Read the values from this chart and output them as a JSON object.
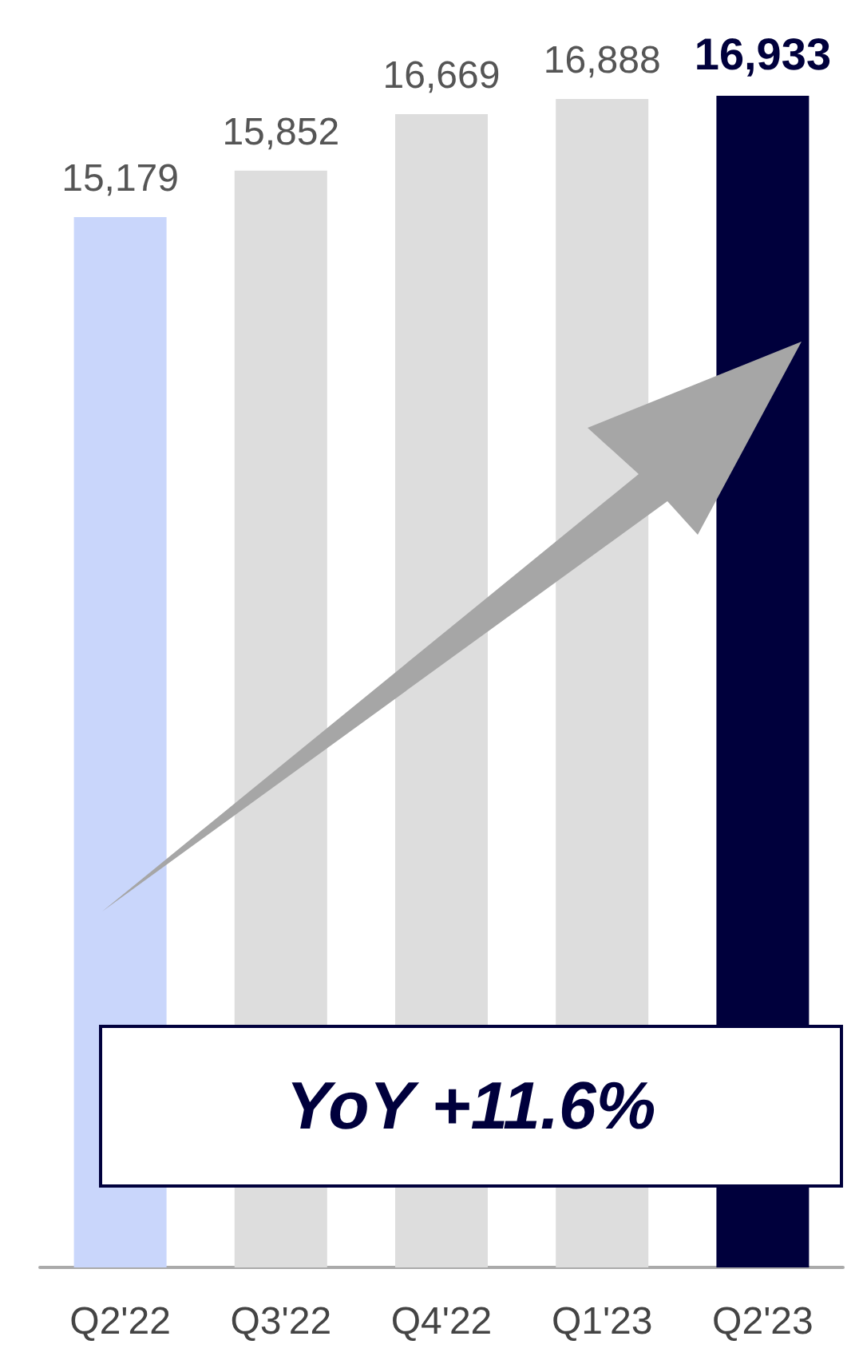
{
  "chart_data": {
    "type": "bar",
    "categories": [
      "Q2'22",
      "Q3'22",
      "Q4'22",
      "Q1'23",
      "Q2'23"
    ],
    "values": [
      15179,
      15852,
      16669,
      16888,
      16933
    ],
    "colors": [
      "#c9d6fb",
      "#dddddd",
      "#dddddd",
      "#dddddd",
      "#00003c"
    ],
    "data_labels": true,
    "value_labels": [
      "15,179",
      "15,852",
      "16,669",
      "16,888",
      "16,933"
    ],
    "annotations": [
      "YoY +11.6%"
    ]
  }
}
